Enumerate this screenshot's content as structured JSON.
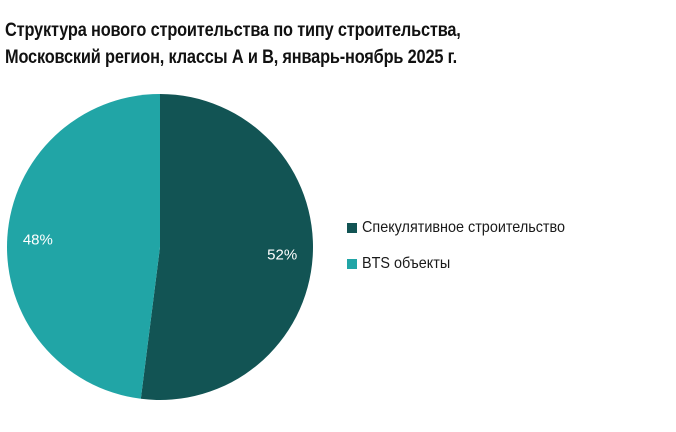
{
  "chart_data": {
    "type": "pie",
    "title": "Структура нового строительства по типу строительства, Московский регион, классы А и В, январь-ноябрь 2025 г.",
    "title_lines": [
      "Структура нового строительства по типу строительства,",
      "Московский регион, классы А и В, январь-ноябрь 2025 г."
    ],
    "categories": [
      "Спекулятивное строительство",
      "BTS объекты"
    ],
    "values": [
      52,
      48
    ],
    "unit": "%",
    "data_labels": [
      "52%",
      "48%"
    ],
    "colors": [
      "#125454",
      "#21A5A6"
    ],
    "start_angle": "top, clockwise",
    "legend_position": "right"
  },
  "legend": {
    "items": [
      {
        "label": "Спекулятивное строительство",
        "color": "#125454"
      },
      {
        "label": "BTS объекты",
        "color": "#21A5A6"
      }
    ]
  }
}
